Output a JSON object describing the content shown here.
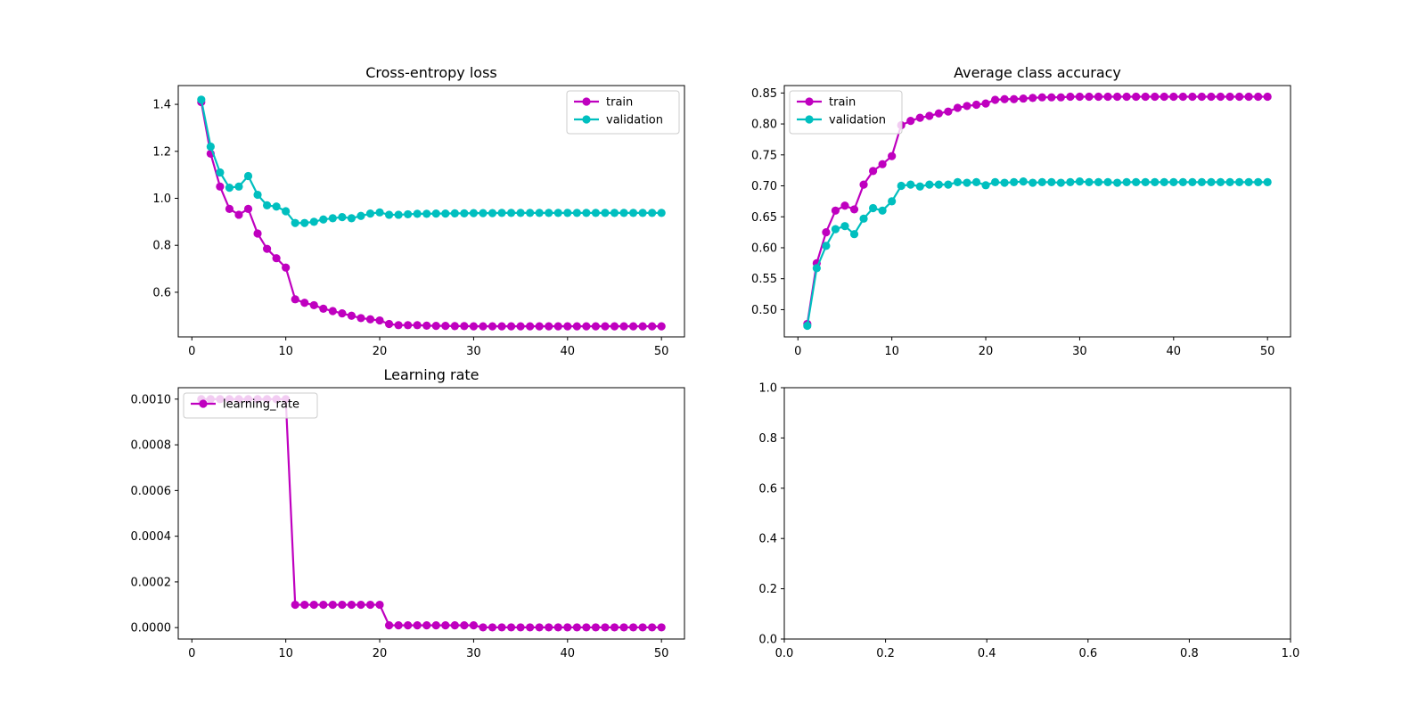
{
  "chart_data": [
    {
      "type": "line",
      "title": "Cross-entropy loss",
      "xlabel": "",
      "ylabel": "",
      "xlim": [
        -1.45,
        52.45
      ],
      "ylim": [
        0.41,
        1.48
      ],
      "xticks": [
        0,
        10,
        20,
        30,
        40,
        50
      ],
      "yticks": [
        0.6,
        0.8,
        1.0,
        1.2,
        1.4
      ],
      "ytick_labels": [
        "0.6",
        "0.8",
        "1.0",
        "1.2",
        "1.4"
      ],
      "xtick_labels": [
        "0",
        "10",
        "20",
        "30",
        "40",
        "50"
      ],
      "grid": false,
      "legend": "top-right",
      "series": [
        {
          "name": "train",
          "color": "#bf00bf",
          "x": [
            1,
            2,
            3,
            4,
            5,
            6,
            7,
            8,
            9,
            10,
            11,
            12,
            13,
            14,
            15,
            16,
            17,
            18,
            19,
            20,
            21,
            22,
            23,
            24,
            25,
            26,
            27,
            28,
            29,
            30,
            31,
            32,
            33,
            34,
            35,
            36,
            37,
            38,
            39,
            40,
            41,
            42,
            43,
            44,
            45,
            46,
            47,
            48,
            49,
            50
          ],
          "y": [
            1.41,
            1.19,
            1.05,
            0.955,
            0.93,
            0.955,
            0.85,
            0.785,
            0.745,
            0.705,
            0.57,
            0.555,
            0.545,
            0.53,
            0.52,
            0.51,
            0.5,
            0.49,
            0.485,
            0.48,
            0.465,
            0.46,
            0.46,
            0.46,
            0.458,
            0.457,
            0.457,
            0.456,
            0.456,
            0.455,
            0.455,
            0.455,
            0.455,
            0.455,
            0.455,
            0.455,
            0.455,
            0.455,
            0.455,
            0.455,
            0.455,
            0.455,
            0.455,
            0.455,
            0.455,
            0.455,
            0.455,
            0.455,
            0.455,
            0.455
          ]
        },
        {
          "name": "validation",
          "color": "#00bfbf",
          "x": [
            1,
            2,
            3,
            4,
            5,
            6,
            7,
            8,
            9,
            10,
            11,
            12,
            13,
            14,
            15,
            16,
            17,
            18,
            19,
            20,
            21,
            22,
            23,
            24,
            25,
            26,
            27,
            28,
            29,
            30,
            31,
            32,
            33,
            34,
            35,
            36,
            37,
            38,
            39,
            40,
            41,
            42,
            43,
            44,
            45,
            46,
            47,
            48,
            49,
            50
          ],
          "y": [
            1.42,
            1.22,
            1.11,
            1.045,
            1.05,
            1.095,
            1.015,
            0.97,
            0.965,
            0.945,
            0.895,
            0.895,
            0.9,
            0.91,
            0.915,
            0.92,
            0.915,
            0.925,
            0.935,
            0.94,
            0.93,
            0.93,
            0.932,
            0.934,
            0.934,
            0.935,
            0.935,
            0.936,
            0.936,
            0.937,
            0.937,
            0.937,
            0.938,
            0.938,
            0.938,
            0.938,
            0.938,
            0.938,
            0.938,
            0.938,
            0.938,
            0.938,
            0.938,
            0.938,
            0.938,
            0.938,
            0.938,
            0.938,
            0.938,
            0.938
          ]
        }
      ]
    },
    {
      "type": "line",
      "title": "Average class accuracy",
      "xlabel": "",
      "ylabel": "",
      "xlim": [
        -1.45,
        52.45
      ],
      "ylim": [
        0.456,
        0.862
      ],
      "xticks": [
        0,
        10,
        20,
        30,
        40,
        50
      ],
      "yticks": [
        0.5,
        0.55,
        0.6,
        0.65,
        0.7,
        0.75,
        0.8,
        0.85
      ],
      "ytick_labels": [
        "0.50",
        "0.55",
        "0.60",
        "0.65",
        "0.70",
        "0.75",
        "0.80",
        "0.85"
      ],
      "xtick_labels": [
        "0",
        "10",
        "20",
        "30",
        "40",
        "50"
      ],
      "grid": false,
      "legend": "top-left",
      "series": [
        {
          "name": "train",
          "color": "#bf00bf",
          "x": [
            1,
            2,
            3,
            4,
            5,
            6,
            7,
            8,
            9,
            10,
            11,
            12,
            13,
            14,
            15,
            16,
            17,
            18,
            19,
            20,
            21,
            22,
            23,
            24,
            25,
            26,
            27,
            28,
            29,
            30,
            31,
            32,
            33,
            34,
            35,
            36,
            37,
            38,
            39,
            40,
            41,
            42,
            43,
            44,
            45,
            46,
            47,
            48,
            49,
            50
          ],
          "y": [
            0.477,
            0.575,
            0.625,
            0.66,
            0.668,
            0.662,
            0.702,
            0.724,
            0.735,
            0.748,
            0.798,
            0.805,
            0.81,
            0.813,
            0.817,
            0.82,
            0.826,
            0.829,
            0.831,
            0.833,
            0.839,
            0.84,
            0.84,
            0.841,
            0.842,
            0.843,
            0.843,
            0.843,
            0.844,
            0.844,
            0.844,
            0.844,
            0.844,
            0.844,
            0.844,
            0.844,
            0.844,
            0.844,
            0.844,
            0.844,
            0.844,
            0.844,
            0.844,
            0.844,
            0.844,
            0.844,
            0.844,
            0.844,
            0.844,
            0.844
          ]
        },
        {
          "name": "validation",
          "color": "#00bfbf",
          "x": [
            1,
            2,
            3,
            4,
            5,
            6,
            7,
            8,
            9,
            10,
            11,
            12,
            13,
            14,
            15,
            16,
            17,
            18,
            19,
            20,
            21,
            22,
            23,
            24,
            25,
            26,
            27,
            28,
            29,
            30,
            31,
            32,
            33,
            34,
            35,
            36,
            37,
            38,
            39,
            40,
            41,
            42,
            43,
            44,
            45,
            46,
            47,
            48,
            49,
            50
          ],
          "y": [
            0.474,
            0.567,
            0.603,
            0.63,
            0.635,
            0.622,
            0.647,
            0.664,
            0.66,
            0.675,
            0.7,
            0.702,
            0.699,
            0.702,
            0.702,
            0.702,
            0.706,
            0.705,
            0.706,
            0.701,
            0.706,
            0.705,
            0.706,
            0.707,
            0.705,
            0.706,
            0.706,
            0.705,
            0.706,
            0.707,
            0.706,
            0.706,
            0.706,
            0.705,
            0.706,
            0.706,
            0.706,
            0.706,
            0.706,
            0.706,
            0.706,
            0.706,
            0.706,
            0.706,
            0.706,
            0.706,
            0.706,
            0.706,
            0.706,
            0.706
          ]
        }
      ]
    },
    {
      "type": "line",
      "title": "Learning rate",
      "xlabel": "",
      "ylabel": "",
      "xlim": [
        -1.45,
        52.45
      ],
      "ylim": [
        -5e-05,
        0.00105
      ],
      "xticks": [
        0,
        10,
        20,
        30,
        40,
        50
      ],
      "yticks": [
        0,
        0.0002,
        0.0004,
        0.0006,
        0.0008,
        0.001
      ],
      "ytick_labels": [
        "0.0000",
        "0.0002",
        "0.0004",
        "0.0006",
        "0.0008",
        "0.0010"
      ],
      "xtick_labels": [
        "0",
        "10",
        "20",
        "30",
        "40",
        "50"
      ],
      "grid": false,
      "legend": "top-left",
      "series": [
        {
          "name": "learning_rate",
          "color": "#bf00bf",
          "x": [
            1,
            2,
            3,
            4,
            5,
            6,
            7,
            8,
            9,
            10,
            11,
            12,
            13,
            14,
            15,
            16,
            17,
            18,
            19,
            20,
            21,
            22,
            23,
            24,
            25,
            26,
            27,
            28,
            29,
            30,
            31,
            32,
            33,
            34,
            35,
            36,
            37,
            38,
            39,
            40,
            41,
            42,
            43,
            44,
            45,
            46,
            47,
            48,
            49,
            50
          ],
          "y": [
            0.001,
            0.001,
            0.001,
            0.001,
            0.001,
            0.001,
            0.001,
            0.001,
            0.001,
            0.001,
            0.0001,
            0.0001,
            0.0001,
            0.0001,
            0.0001,
            0.0001,
            0.0001,
            0.0001,
            0.0001,
            0.0001,
            1e-05,
            1e-05,
            1e-05,
            1e-05,
            1e-05,
            1e-05,
            1e-05,
            1e-05,
            1e-05,
            1e-05,
            1e-06,
            1e-06,
            1e-06,
            1e-06,
            1e-06,
            1e-06,
            1e-06,
            1e-06,
            1e-06,
            1e-06,
            1e-06,
            1e-06,
            1e-06,
            1e-06,
            1e-06,
            1e-06,
            1e-06,
            1e-06,
            1e-06,
            1e-06
          ]
        }
      ]
    },
    {
      "type": "line",
      "title": "",
      "xlabel": "",
      "ylabel": "",
      "xlim": [
        0,
        1
      ],
      "ylim": [
        0,
        1
      ],
      "xticks": [
        0,
        0.2,
        0.4,
        0.6,
        0.8,
        1.0
      ],
      "yticks": [
        0,
        0.2,
        0.4,
        0.6,
        0.8,
        1.0
      ],
      "xtick_labels": [
        "0.0",
        "0.2",
        "0.4",
        "0.6",
        "0.8",
        "1.0"
      ],
      "ytick_labels": [
        "0.0",
        "0.2",
        "0.4",
        "0.6",
        "0.8",
        "1.0"
      ],
      "grid": false,
      "legend": "none",
      "series": []
    }
  ]
}
